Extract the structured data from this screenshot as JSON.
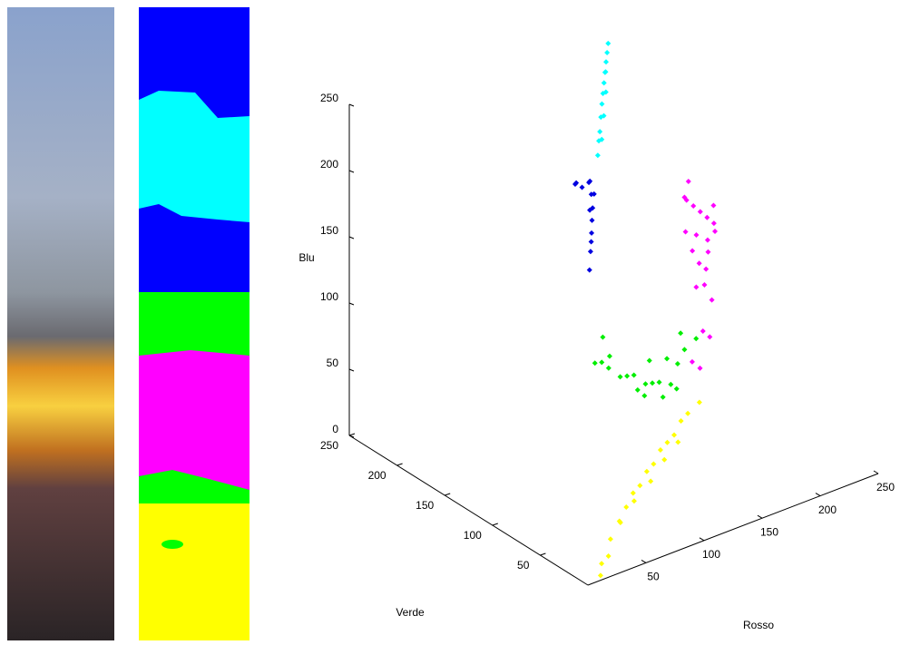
{
  "chart_data": {
    "type": "scatter3d",
    "xlabel": "Rosso",
    "ylabel": "Verde",
    "zlabel": "Blu",
    "xlim": [
      0,
      250
    ],
    "ylim": [
      0,
      250
    ],
    "zlim": [
      0,
      250
    ],
    "xticks": [
      50,
      100,
      150,
      200,
      250
    ],
    "yticks": [
      50,
      100,
      150,
      200,
      250
    ],
    "zticks": [
      0,
      50,
      100,
      150,
      200,
      250
    ],
    "series": [
      {
        "color": "#00ffff",
        "x": [
          140,
          150,
          155,
          160,
          165,
          170,
          175,
          180,
          185,
          190,
          150,
          160,
          170,
          145,
          178
        ],
        "y": [
          160,
          170,
          175,
          180,
          185,
          190,
          195,
          200,
          205,
          210,
          168,
          178,
          188,
          165,
          198
        ],
        "z": [
          205,
          215,
          222,
          228,
          232,
          236,
          240,
          244,
          247,
          250,
          210,
          220,
          230,
          212,
          238
        ]
      },
      {
        "color": "#0000e0",
        "x": [
          100,
          105,
          110,
          112,
          115,
          118,
          120,
          110,
          105,
          100,
          125,
          108,
          115,
          122
        ],
        "y": [
          120,
          125,
          130,
          132,
          135,
          140,
          145,
          140,
          140,
          135,
          150,
          128,
          138,
          142
        ],
        "z": [
          150,
          160,
          170,
          178,
          185,
          192,
          198,
          200,
          205,
          208,
          195,
          165,
          182,
          190
        ]
      },
      {
        "color": "#00ee00",
        "x": [
          80,
          90,
          100,
          110,
          120,
          130,
          140,
          150,
          160,
          170,
          180,
          190,
          200,
          95,
          105,
          125,
          145,
          165,
          185,
          135,
          155,
          175
        ],
        "y": [
          90,
          95,
          100,
          100,
          105,
          110,
          110,
          115,
          120,
          120,
          125,
          130,
          130,
          100,
          105,
          100,
          112,
          118,
          128,
          105,
          110,
          120
        ],
        "z": [
          100,
          95,
          85,
          75,
          70,
          65,
          55,
          50,
          45,
          40,
          50,
          55,
          60,
          110,
          90,
          60,
          70,
          62,
          70,
          50,
          40,
          35
        ]
      },
      {
        "color": "#ff00ff",
        "x": [
          200,
          210,
          220,
          230,
          240,
          245,
          235,
          225,
          215,
          205,
          195,
          190,
          200,
          215,
          228,
          238,
          210,
          222,
          220,
          210,
          230,
          205,
          195
        ],
        "y": [
          140,
          145,
          150,
          155,
          160,
          165,
          160,
          150,
          145,
          140,
          135,
          130,
          138,
          148,
          152,
          158,
          142,
          148,
          140,
          135,
          150,
          132,
          128
        ],
        "z": [
          160,
          150,
          140,
          130,
          120,
          110,
          100,
          95,
          105,
          120,
          140,
          170,
          175,
          125,
          115,
          135,
          90,
          85,
          50,
          60,
          70,
          35,
          45
        ]
      },
      {
        "color": "#ffff00",
        "x": [
          60,
          70,
          80,
          90,
          100,
          110,
          120,
          130,
          140,
          150,
          160,
          170,
          65,
          85,
          105,
          125,
          145,
          15,
          20,
          30,
          40
        ],
        "y": [
          40,
          45,
          50,
          55,
          60,
          65,
          70,
          75,
          80,
          85,
          90,
          90,
          45,
          55,
          62,
          72,
          82,
          5,
          10,
          15,
          25
        ],
        "z": [
          10,
          15,
          20,
          20,
          25,
          25,
          30,
          30,
          30,
          35,
          35,
          40,
          5,
          10,
          15,
          20,
          22,
          0,
          5,
          5,
          10
        ]
      }
    ]
  }
}
